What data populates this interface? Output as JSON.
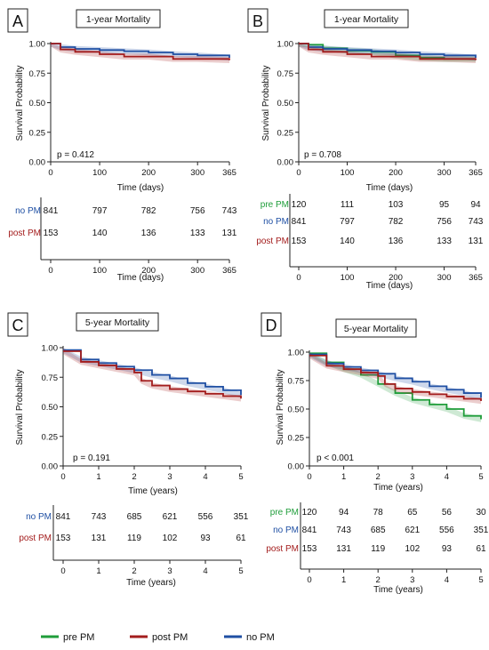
{
  "colors": {
    "pre": "#1f9d3a",
    "post": "#a31d1d",
    "no": "#1f4fa3"
  },
  "legend": {
    "pre": "pre PM",
    "post": "post PM",
    "no": "no PM"
  },
  "chart_data": [
    {
      "panel": "A",
      "title": "1-year Mortality",
      "type": "line",
      "xlabel": "Time (days)",
      "ylabel": "Survival Probability",
      "xlim": [
        0,
        365
      ],
      "ylim": [
        0,
        1
      ],
      "xticks": [
        "0",
        "100",
        "200",
        "300",
        "365"
      ],
      "yticks": [
        "0.00",
        "0.25",
        "0.50",
        "0.75",
        "1.00"
      ],
      "pvalue": "p = 0.412",
      "series": [
        {
          "name": "no PM",
          "key": "no",
          "x": [
            0,
            20,
            50,
            100,
            150,
            200,
            250,
            300,
            365
          ],
          "y": [
            1.0,
            0.97,
            0.955,
            0.945,
            0.935,
            0.925,
            0.91,
            0.9,
            0.88
          ]
        },
        {
          "name": "post PM",
          "key": "post",
          "x": [
            0,
            20,
            50,
            100,
            150,
            200,
            250,
            300,
            365
          ],
          "y": [
            1.0,
            0.95,
            0.93,
            0.91,
            0.89,
            0.89,
            0.87,
            0.87,
            0.86
          ]
        }
      ],
      "risk_xlabel": "Time (days)",
      "risk_ticks": [
        "0",
        "100",
        "200",
        "300",
        "365"
      ],
      "risk_rows": [
        {
          "label": "no PM",
          "key": "no",
          "values": [
            "841",
            "797",
            "782",
            "756",
            "743"
          ]
        },
        {
          "label": "post PM",
          "key": "post",
          "values": [
            "153",
            "140",
            "136",
            "133",
            "131"
          ]
        }
      ]
    },
    {
      "panel": "B",
      "title": "1-year Mortality",
      "type": "line",
      "xlabel": "Time (days)",
      "ylabel": "Survival Probability",
      "xlim": [
        0,
        365
      ],
      "ylim": [
        0,
        1
      ],
      "xticks": [
        "0",
        "100",
        "200",
        "300",
        "365"
      ],
      "yticks": [
        "0.00",
        "0.25",
        "0.50",
        "0.75",
        "1.00"
      ],
      "pvalue": "p = 0.708",
      "series": [
        {
          "name": "pre PM",
          "key": "pre",
          "x": [
            0,
            20,
            50,
            100,
            150,
            200,
            250,
            300,
            365
          ],
          "y": [
            1.0,
            0.99,
            0.96,
            0.94,
            0.93,
            0.9,
            0.88,
            0.87,
            0.87
          ]
        },
        {
          "name": "no PM",
          "key": "no",
          "x": [
            0,
            20,
            50,
            100,
            150,
            200,
            250,
            300,
            365
          ],
          "y": [
            1.0,
            0.97,
            0.955,
            0.945,
            0.935,
            0.925,
            0.91,
            0.9,
            0.88
          ]
        },
        {
          "name": "post PM",
          "key": "post",
          "x": [
            0,
            20,
            50,
            100,
            150,
            200,
            250,
            300,
            365
          ],
          "y": [
            1.0,
            0.95,
            0.93,
            0.91,
            0.89,
            0.89,
            0.87,
            0.87,
            0.86
          ]
        }
      ],
      "risk_xlabel": "Time (days)",
      "risk_ticks": [
        "0",
        "100",
        "200",
        "300",
        "365"
      ],
      "risk_rows": [
        {
          "label": "pre PM",
          "key": "pre",
          "values": [
            "120",
            "111",
            "103",
            "95",
            "94"
          ]
        },
        {
          "label": "no PM",
          "key": "no",
          "values": [
            "841",
            "797",
            "782",
            "756",
            "743"
          ]
        },
        {
          "label": "post PM",
          "key": "post",
          "values": [
            "153",
            "140",
            "136",
            "133",
            "131"
          ]
        }
      ]
    },
    {
      "panel": "C",
      "title": "5-year Mortality",
      "type": "line",
      "xlabel": "Time (years)",
      "ylabel": "Survival Probability",
      "xlim": [
        0,
        5
      ],
      "ylim": [
        0,
        1
      ],
      "xticks": [
        "0",
        "1",
        "2",
        "3",
        "4",
        "5"
      ],
      "yticks": [
        "0.00",
        "0.25",
        "0.50",
        "0.75",
        "1.00"
      ],
      "pvalue": "p = 0.191",
      "series": [
        {
          "name": "no PM",
          "key": "no",
          "x": [
            0,
            0.5,
            1,
            1.5,
            2,
            2.5,
            3,
            3.5,
            4,
            4.5,
            5
          ],
          "y": [
            0.98,
            0.9,
            0.87,
            0.84,
            0.81,
            0.77,
            0.74,
            0.7,
            0.67,
            0.64,
            0.6
          ]
        },
        {
          "name": "post PM",
          "key": "post",
          "x": [
            0,
            0.5,
            1,
            1.5,
            2,
            2.2,
            2.5,
            3,
            3.5,
            4,
            4.5,
            5
          ],
          "y": [
            0.97,
            0.88,
            0.85,
            0.82,
            0.79,
            0.72,
            0.68,
            0.65,
            0.63,
            0.61,
            0.59,
            0.57
          ]
        }
      ],
      "risk_xlabel": "Time (years)",
      "risk_ticks": [
        "0",
        "1",
        "2",
        "3",
        "4",
        "5"
      ],
      "risk_rows": [
        {
          "label": "no PM",
          "key": "no",
          "values": [
            "841",
            "743",
            "685",
            "621",
            "556",
            "351"
          ]
        },
        {
          "label": "post PM",
          "key": "post",
          "values": [
            "153",
            "131",
            "119",
            "102",
            "93",
            "61"
          ]
        }
      ]
    },
    {
      "panel": "D",
      "title": "5-year Mortality",
      "type": "line",
      "xlabel": "Time (years)",
      "ylabel": "Survival Probability",
      "xlim": [
        0,
        5
      ],
      "ylim": [
        0,
        1
      ],
      "xticks": [
        "0",
        "1",
        "2",
        "3",
        "4",
        "5"
      ],
      "yticks": [
        "0.00",
        "0.25",
        "0.50",
        "0.75",
        "1.00"
      ],
      "pvalue": "p < 0.001",
      "series": [
        {
          "name": "pre PM",
          "key": "pre",
          "x": [
            0,
            0.5,
            1,
            1.5,
            2,
            2.5,
            3,
            3.5,
            4,
            4.5,
            5
          ],
          "y": [
            0.99,
            0.91,
            0.85,
            0.8,
            0.72,
            0.64,
            0.58,
            0.54,
            0.5,
            0.44,
            0.41
          ]
        },
        {
          "name": "no PM",
          "key": "no",
          "x": [
            0,
            0.5,
            1,
            1.5,
            2,
            2.5,
            3,
            3.5,
            4,
            4.5,
            5
          ],
          "y": [
            0.98,
            0.9,
            0.87,
            0.84,
            0.81,
            0.77,
            0.74,
            0.7,
            0.67,
            0.64,
            0.6
          ]
        },
        {
          "name": "post PM",
          "key": "post",
          "x": [
            0,
            0.5,
            1,
            1.5,
            2,
            2.2,
            2.5,
            3,
            3.5,
            4,
            4.5,
            5
          ],
          "y": [
            0.97,
            0.88,
            0.85,
            0.82,
            0.79,
            0.72,
            0.68,
            0.65,
            0.63,
            0.61,
            0.59,
            0.57
          ]
        }
      ],
      "risk_xlabel": "Time (years)",
      "risk_ticks": [
        "0",
        "1",
        "2",
        "3",
        "4",
        "5"
      ],
      "risk_rows": [
        {
          "label": "pre PM",
          "key": "pre",
          "values": [
            "120",
            "94",
            "78",
            "65",
            "56",
            "30"
          ]
        },
        {
          "label": "no PM",
          "key": "no",
          "values": [
            "841",
            "743",
            "685",
            "621",
            "556",
            "351"
          ]
        },
        {
          "label": "post PM",
          "key": "post",
          "values": [
            "153",
            "131",
            "119",
            "102",
            "93",
            "61"
          ]
        }
      ]
    }
  ]
}
